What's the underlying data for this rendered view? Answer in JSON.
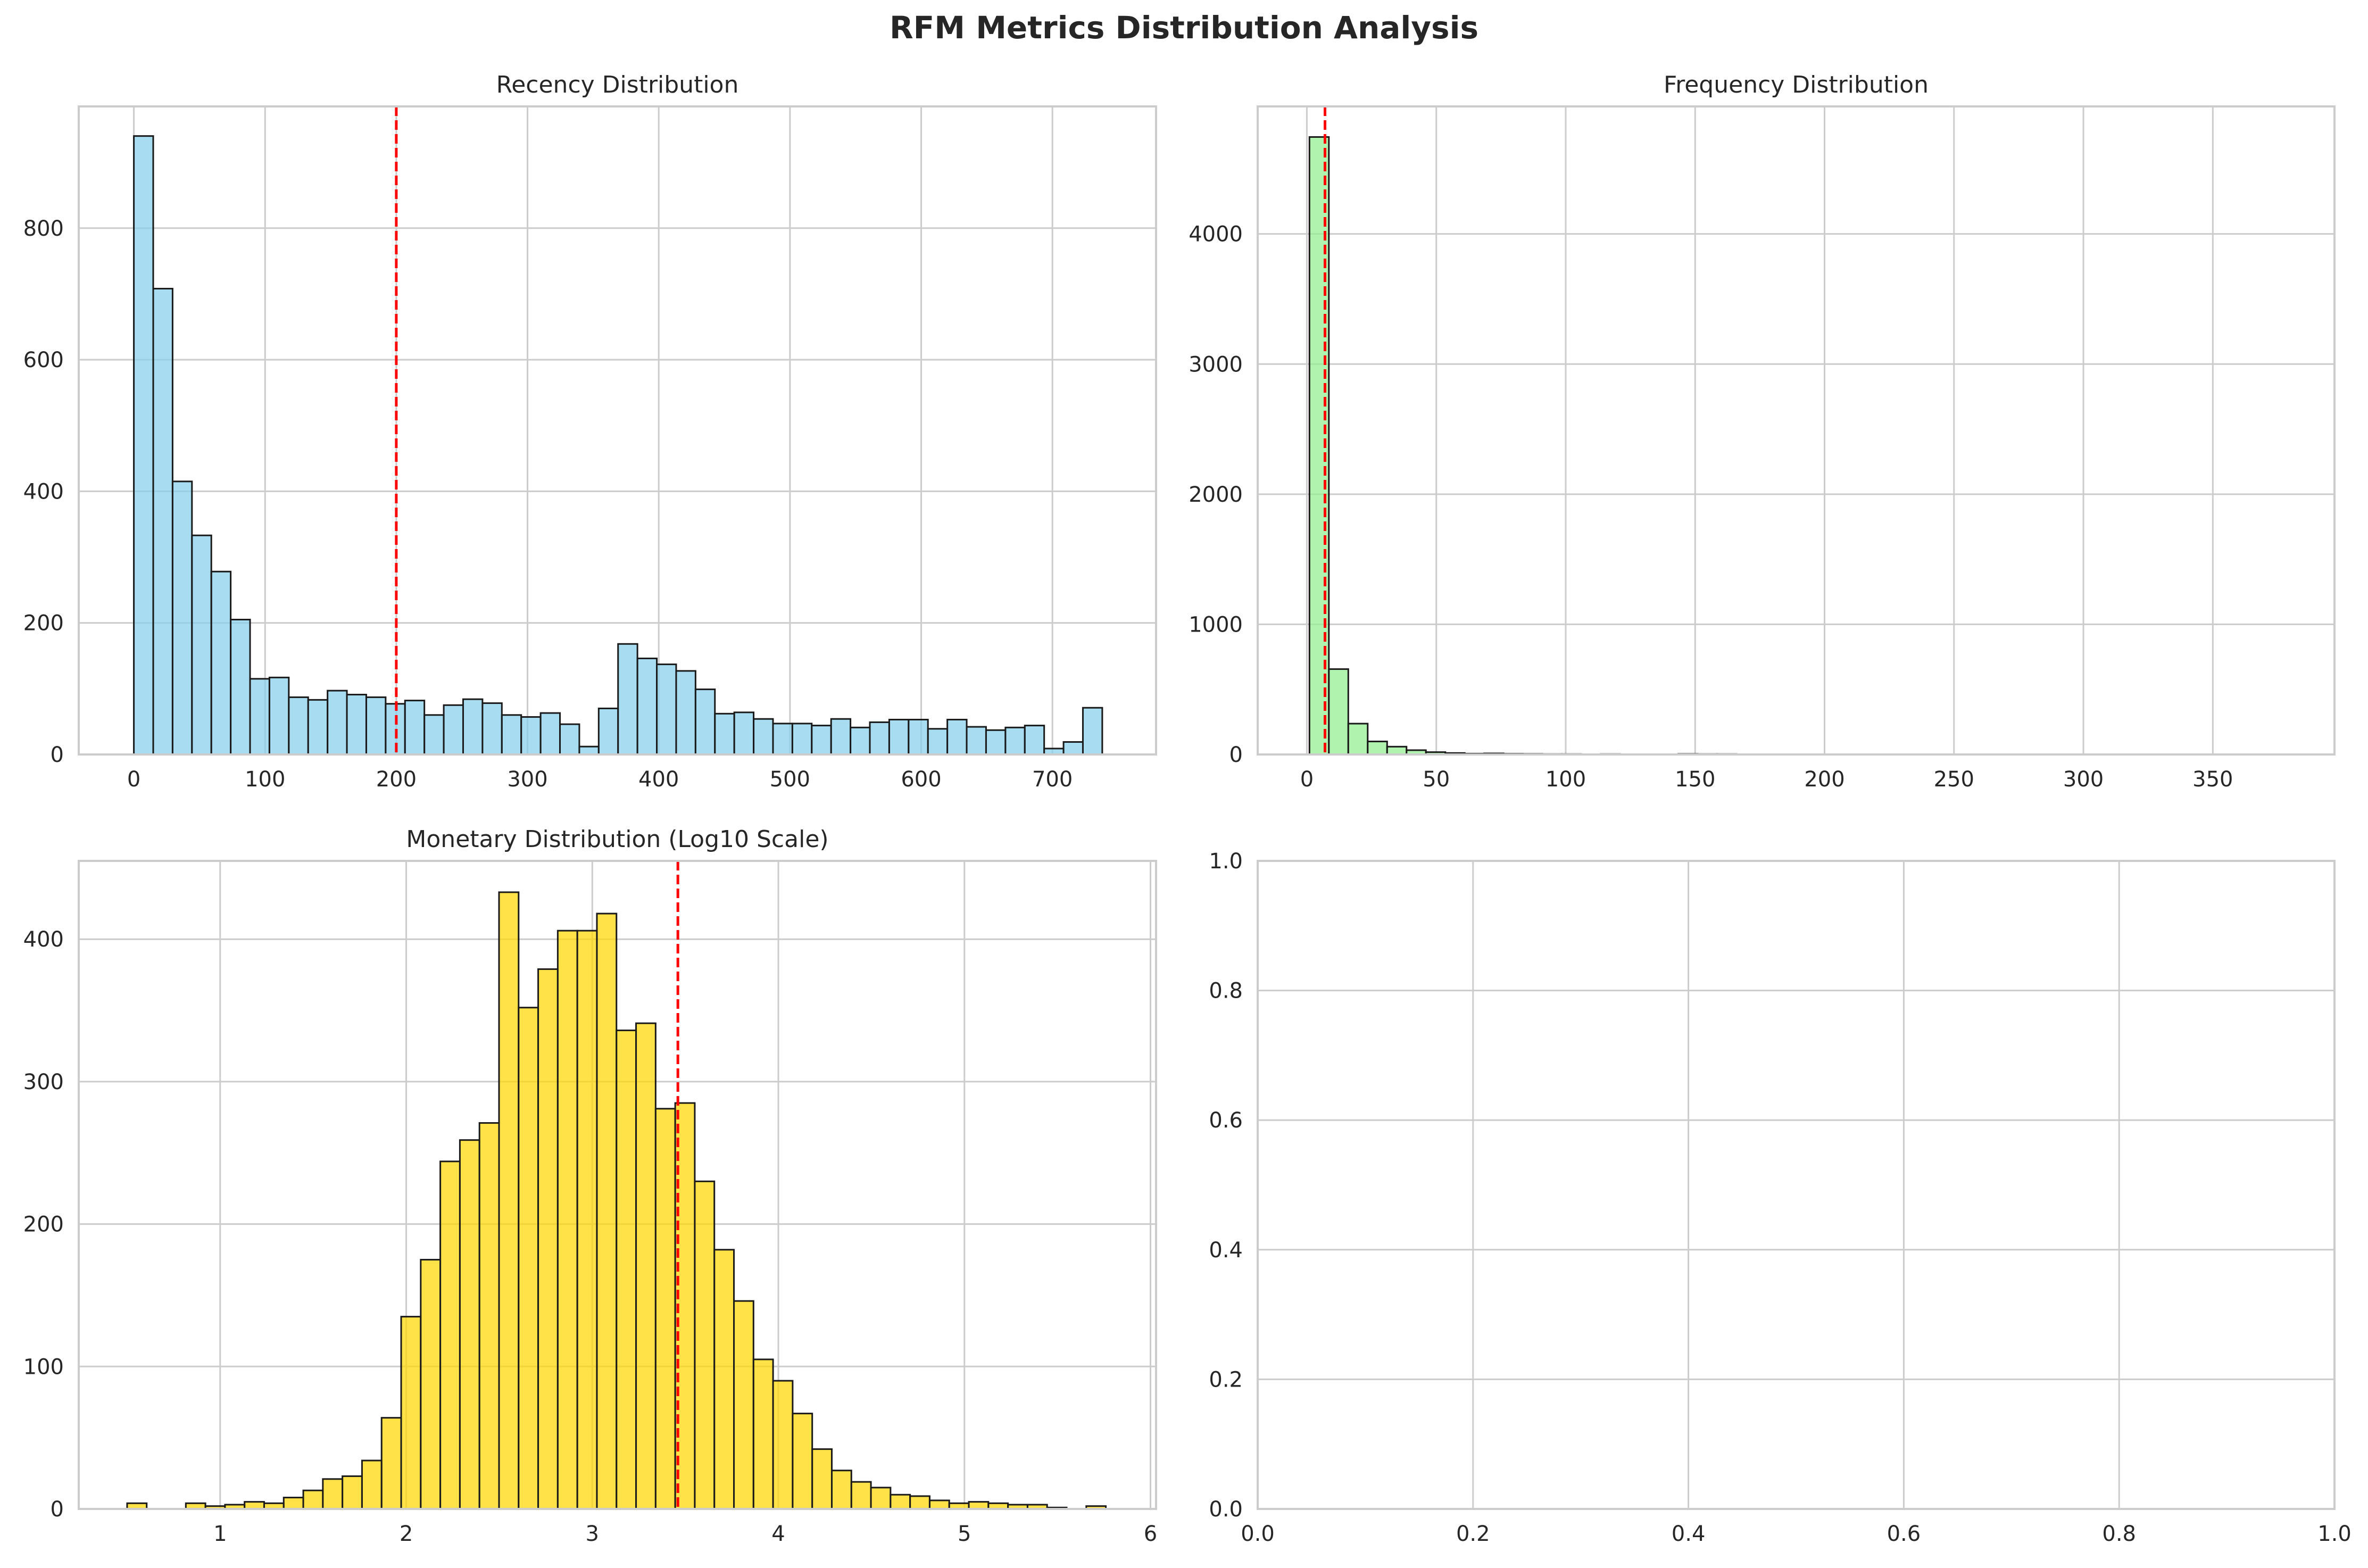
{
  "figure": {
    "title": "RFM Metrics Distribution Analysis"
  },
  "chart_data": [
    {
      "type": "bar",
      "title": "Recency Distribution",
      "xlabel": "",
      "ylabel": "",
      "xlim": [
        -42,
        779
      ],
      "ylim": [
        0,
        985
      ],
      "xticks": [
        0,
        100,
        200,
        300,
        400,
        500,
        600,
        700
      ],
      "yticks": [
        0,
        200,
        400,
        600,
        800
      ],
      "grid": true,
      "bar_color": "#87CEEB",
      "bin_start": 0,
      "bin_width": 14.76,
      "values": [
        940,
        708,
        415,
        333,
        278,
        205,
        115,
        117,
        87,
        83,
        97,
        91,
        87,
        77,
        82,
        60,
        75,
        84,
        78,
        60,
        57,
        63,
        46,
        12,
        70,
        168,
        146,
        137,
        127,
        99,
        62,
        64,
        54,
        47,
        47,
        44,
        54,
        41,
        49,
        53,
        53,
        39,
        53,
        42,
        37,
        41,
        44,
        9,
        19,
        71
      ],
      "reference_line": 200,
      "reference_color": "#ff0000"
    },
    {
      "type": "bar",
      "title": "Frequency Distribution",
      "xlabel": "",
      "ylabel": "",
      "xlim": [
        -19,
        397
      ],
      "ylim": [
        0,
        4980
      ],
      "xticks": [
        0,
        50,
        100,
        150,
        200,
        250,
        300,
        350
      ],
      "yticks": [
        0,
        1000,
        2000,
        3000,
        4000
      ],
      "grid": true,
      "bar_color": "#90EE90",
      "bin_start": 1,
      "bin_width": 7.5,
      "values": [
        4745,
        656,
        237,
        100,
        60,
        33,
        18,
        11,
        6,
        8,
        5,
        4,
        3,
        3,
        2,
        3,
        2,
        1,
        2,
        4,
        3,
        3,
        2,
        1,
        1,
        1,
        0,
        0,
        0,
        0,
        0,
        1,
        0,
        1,
        1,
        0,
        0,
        0,
        0,
        0,
        0,
        0,
        1,
        0,
        0,
        0,
        0,
        0,
        0,
        1
      ],
      "reference_line": 7,
      "reference_color": "#ff0000"
    },
    {
      "type": "bar",
      "title": "Monetary Distribution (Log10 Scale)",
      "xlabel": "",
      "ylabel": "",
      "xlim": [
        0.24,
        6.03
      ],
      "ylim": [
        0,
        455
      ],
      "xticks": [
        1,
        2,
        3,
        4,
        5,
        6
      ],
      "yticks": [
        0,
        100,
        200,
        300,
        400
      ],
      "grid": true,
      "bar_color": "#FFD700",
      "bin_start": 0.5,
      "bin_width": 0.1052,
      "values": [
        4,
        0,
        0,
        4,
        2,
        3,
        5,
        4,
        8,
        13,
        21,
        23,
        34,
        64,
        135,
        175,
        244,
        259,
        271,
        433,
        352,
        379,
        406,
        406,
        418,
        336,
        341,
        281,
        285,
        230,
        182,
        146,
        105,
        90,
        67,
        42,
        27,
        19,
        15,
        10,
        9,
        6,
        4,
        5,
        4,
        3,
        3,
        1,
        0,
        2
      ],
      "reference_line": 3.46,
      "reference_color": "#ff0000"
    },
    {
      "type": "bar",
      "title": "",
      "xlabel": "",
      "ylabel": "",
      "xlim": [
        0,
        1
      ],
      "ylim": [
        0,
        1
      ],
      "xticks": [
        0.0,
        0.2,
        0.4,
        0.6,
        0.8,
        1.0
      ],
      "yticks": [
        0.0,
        0.2,
        0.4,
        0.6,
        0.8,
        1.0
      ],
      "xtick_labels": [
        "0.0",
        "0.2",
        "0.4",
        "0.6",
        "0.8",
        "1.0"
      ],
      "ytick_labels": [
        "0.0",
        "0.2",
        "0.4",
        "0.6",
        "0.8",
        "1.0"
      ],
      "grid": true,
      "values": []
    }
  ]
}
